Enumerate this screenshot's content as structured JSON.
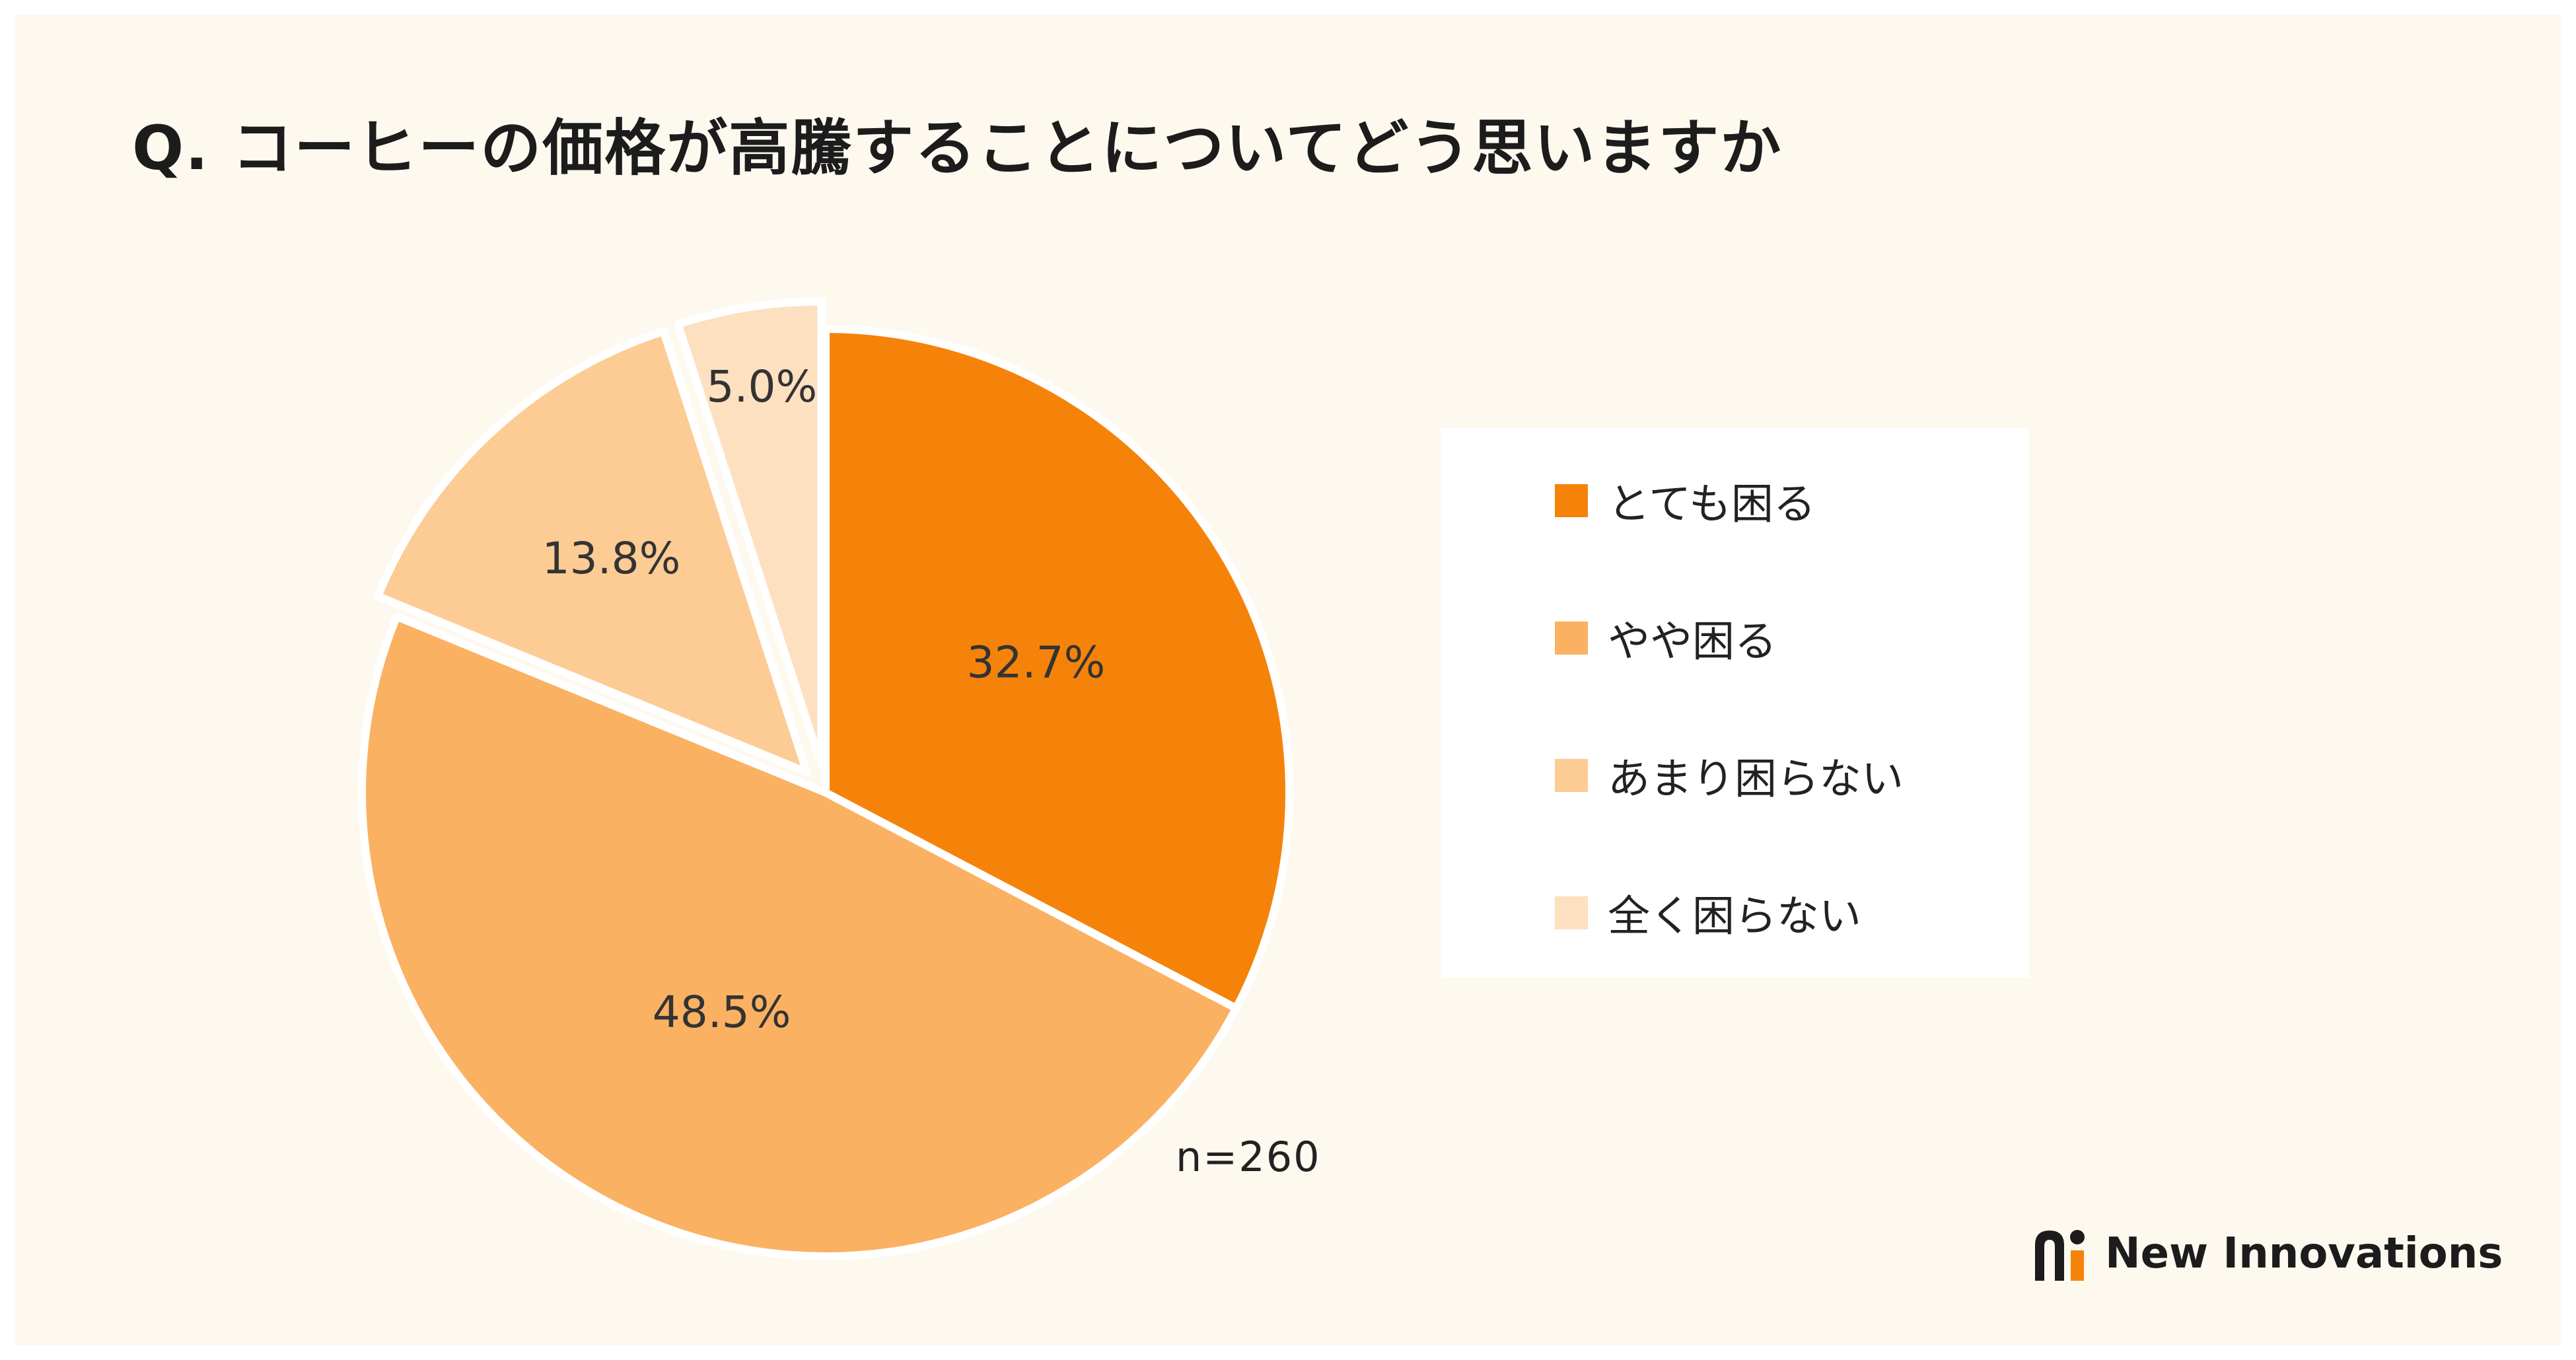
{
  "title": "Q. コーヒーの価格が高騰することについてどう思いますか",
  "chart_data": {
    "type": "pie",
    "title": "Q. コーヒーの価格が高騰することについてどう思いますか",
    "categories": [
      "とても困る",
      "やや困る",
      "あまり困らない",
      "全く困らない"
    ],
    "values": [
      32.7,
      48.5,
      13.8,
      5.0
    ],
    "data_labels": [
      "32.7%",
      "48.5%",
      "13.8%",
      "5.0%"
    ],
    "legend_labels": [
      "とても困る",
      "やや困る",
      "あまり困らない",
      "全く困らない"
    ],
    "colors": [
      "#f5830a",
      "#fbb162",
      "#fdcb94",
      "#fde0c0"
    ],
    "slice_order_clockwise_from_top": [
      "とても困る",
      "やや困る",
      "あまり困らない",
      "全く困らない"
    ],
    "exploded_slices": [
      "あまり困らない",
      "全く困らない"
    ],
    "legend_position": "right",
    "sample_size": "n=260"
  },
  "brand": {
    "name": "New Innovations",
    "accent": "#f5830a"
  }
}
